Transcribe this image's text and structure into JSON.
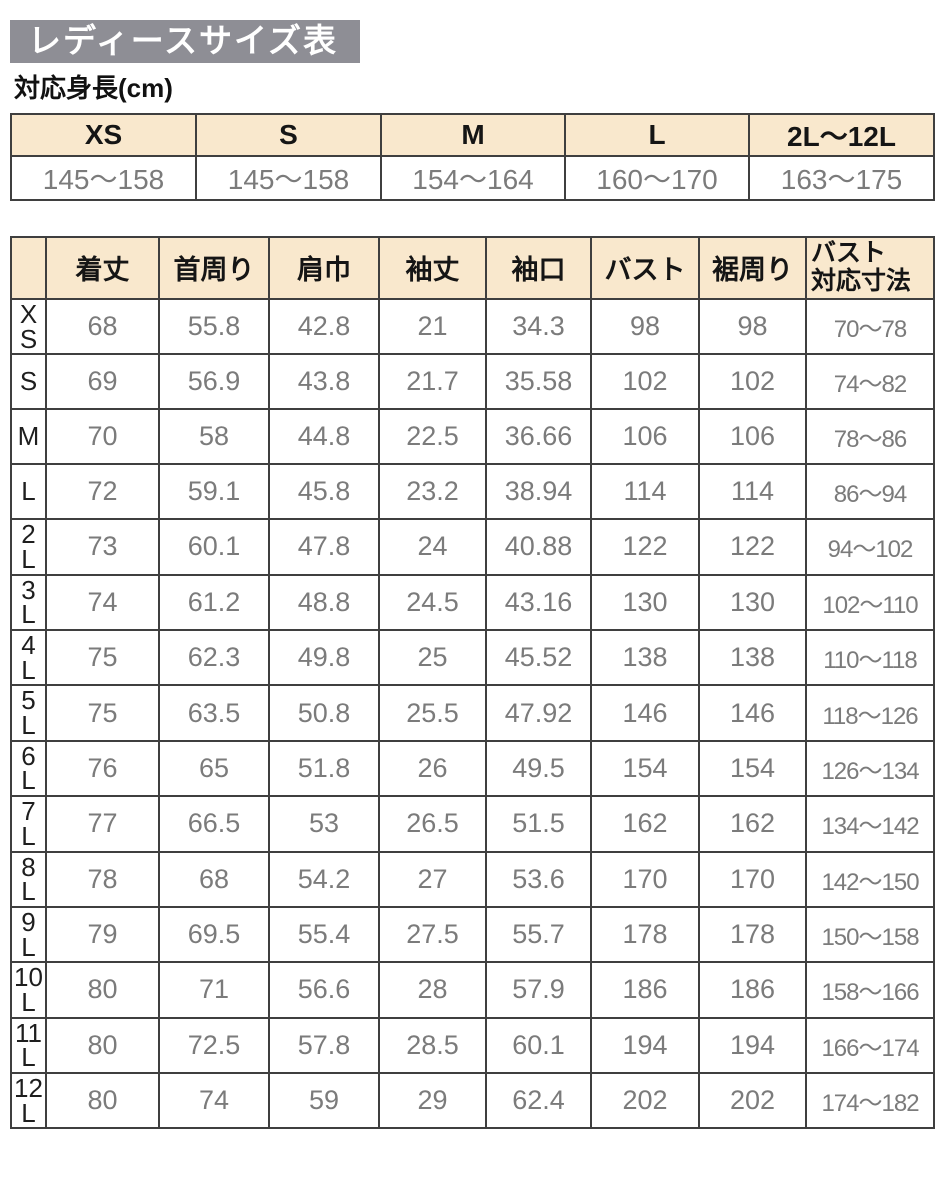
{
  "page": {
    "title": "レディースサイズ表",
    "height_section_title": "対応身長(cm)"
  },
  "colors": {
    "title_bg": "#8e8e95",
    "header_bg": "#f9e8cd",
    "border": "#3f3f3f",
    "value_text": "#7b7b7b"
  },
  "height_table": {
    "columns": [
      "XS",
      "S",
      "M",
      "L",
      "2L〜12L"
    ],
    "values": [
      "145〜158",
      "145〜158",
      "154〜164",
      "160〜170",
      "163〜175"
    ]
  },
  "size_table": {
    "corner_label": "",
    "columns": [
      "着丈",
      "首周り",
      "肩巾",
      "袖丈",
      "袖口",
      "バスト",
      "裾周り",
      "バスト\n対応寸法"
    ],
    "rows": [
      {
        "size": "XS",
        "values": [
          "68",
          "55.8",
          "42.8",
          "21",
          "34.3",
          "98",
          "98",
          "70〜78"
        ]
      },
      {
        "size": "S",
        "values": [
          "69",
          "56.9",
          "43.8",
          "21.7",
          "35.58",
          "102",
          "102",
          "74〜82"
        ]
      },
      {
        "size": "M",
        "values": [
          "70",
          "58",
          "44.8",
          "22.5",
          "36.66",
          "106",
          "106",
          "78〜86"
        ]
      },
      {
        "size": "L",
        "values": [
          "72",
          "59.1",
          "45.8",
          "23.2",
          "38.94",
          "114",
          "114",
          "86〜94"
        ]
      },
      {
        "size": "2L",
        "values": [
          "73",
          "60.1",
          "47.8",
          "24",
          "40.88",
          "122",
          "122",
          "94〜102"
        ]
      },
      {
        "size": "3L",
        "values": [
          "74",
          "61.2",
          "48.8",
          "24.5",
          "43.16",
          "130",
          "130",
          "102〜110"
        ]
      },
      {
        "size": "4L",
        "values": [
          "75",
          "62.3",
          "49.8",
          "25",
          "45.52",
          "138",
          "138",
          "110〜118"
        ]
      },
      {
        "size": "5L",
        "values": [
          "75",
          "63.5",
          "50.8",
          "25.5",
          "47.92",
          "146",
          "146",
          "118〜126"
        ]
      },
      {
        "size": "6L",
        "values": [
          "76",
          "65",
          "51.8",
          "26",
          "49.5",
          "154",
          "154",
          "126〜134"
        ]
      },
      {
        "size": "7L",
        "values": [
          "77",
          "66.5",
          "53",
          "26.5",
          "51.5",
          "162",
          "162",
          "134〜142"
        ]
      },
      {
        "size": "8L",
        "values": [
          "78",
          "68",
          "54.2",
          "27",
          "53.6",
          "170",
          "170",
          "142〜150"
        ]
      },
      {
        "size": "9L",
        "values": [
          "79",
          "69.5",
          "55.4",
          "27.5",
          "55.7",
          "178",
          "178",
          "150〜158"
        ]
      },
      {
        "size": "10L",
        "values": [
          "80",
          "71",
          "56.6",
          "28",
          "57.9",
          "186",
          "186",
          "158〜166"
        ]
      },
      {
        "size": "11L",
        "values": [
          "80",
          "72.5",
          "57.8",
          "28.5",
          "60.1",
          "194",
          "194",
          "166〜174"
        ]
      },
      {
        "size": "12L",
        "values": [
          "80",
          "74",
          "59",
          "29",
          "62.4",
          "202",
          "202",
          "174〜182"
        ]
      }
    ]
  }
}
